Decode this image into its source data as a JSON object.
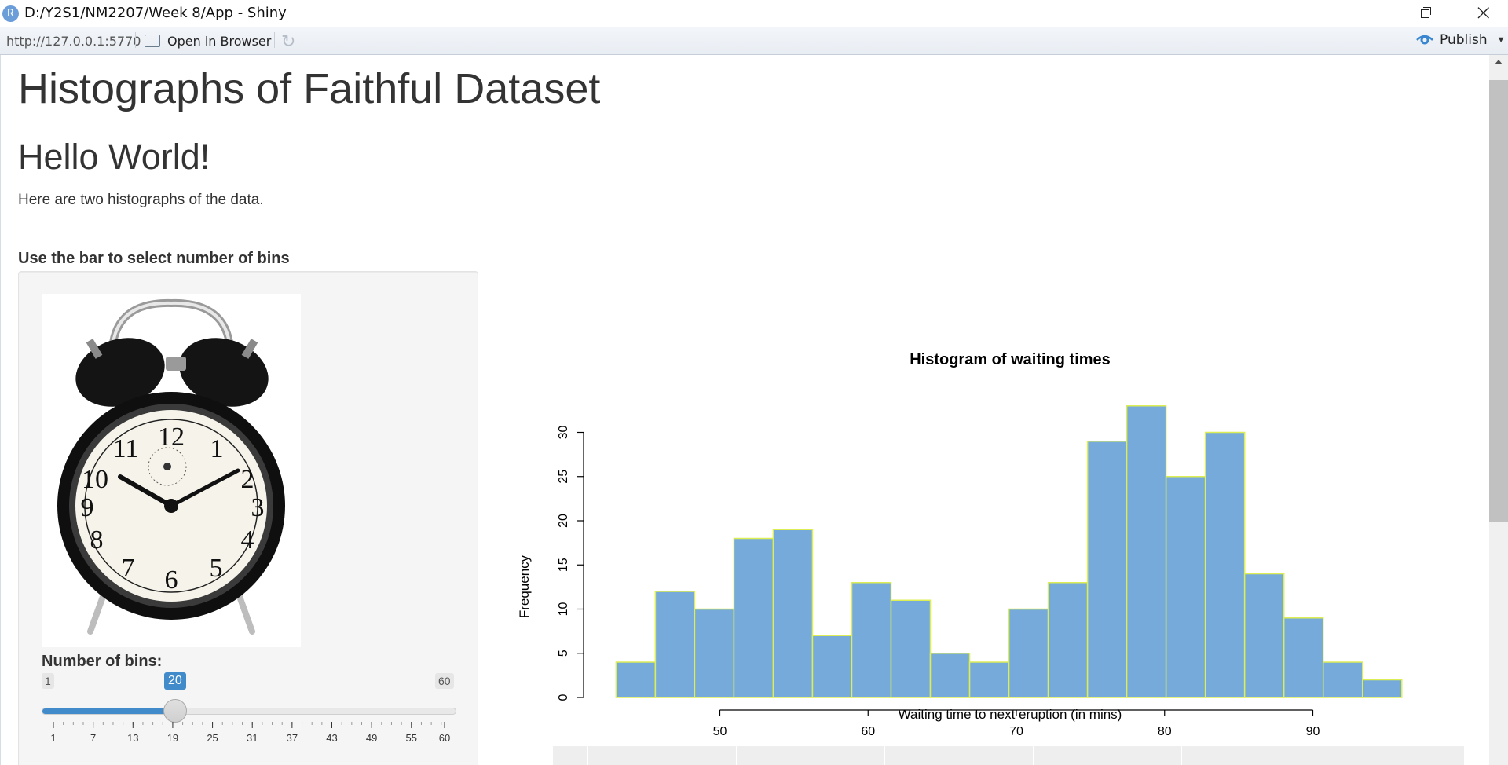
{
  "window": {
    "app_icon_letter": "R",
    "title": "D:/Y2S1/NM2207/Week 8/App - Shiny",
    "minimize_icon": "minimize-icon",
    "restore_icon": "restore-icon",
    "close_icon": "close-icon"
  },
  "toolbar": {
    "url": "http://127.0.0.1:5770",
    "open_in_browser": "Open in Browser",
    "refresh_icon": "refresh-icon",
    "publish": "Publish"
  },
  "page": {
    "title": "Histographs of Faithful Dataset",
    "subtitle": "Hello World!",
    "intro": "Here are two histographs of the data.",
    "sidebar_heading": "Use the bar to select number of bins"
  },
  "sidebar": {
    "image": "alarm-clock-image",
    "slider": {
      "label": "Number of bins:",
      "min": 1,
      "max": 60,
      "value": 20,
      "min_label": "1",
      "max_label": "60",
      "value_label": "20",
      "tick_labels": [
        "1",
        "7",
        "13",
        "19",
        "25",
        "31",
        "37",
        "43",
        "49",
        "55",
        "60"
      ],
      "accent_color": "#428bca"
    }
  },
  "chart_data": {
    "type": "bar",
    "title": "Histogram of waiting times",
    "xlabel": "Waiting time to next eruption (in mins)",
    "ylabel": "Frequency",
    "bin_edges": [
      43.0,
      45.65,
      48.3,
      50.95,
      53.6,
      56.25,
      58.9,
      61.55,
      64.2,
      66.85,
      69.5,
      72.15,
      74.8,
      77.45,
      80.1,
      82.75,
      85.4,
      88.05,
      90.7,
      93.35,
      96.0
    ],
    "values": [
      4,
      12,
      10,
      18,
      19,
      7,
      13,
      11,
      5,
      4,
      10,
      13,
      29,
      33,
      25,
      30,
      14,
      9,
      4,
      2
    ],
    "x_ticks": [
      50,
      60,
      70,
      80,
      90
    ],
    "y_ticks": [
      0,
      5,
      10,
      15,
      20,
      25,
      30
    ],
    "ylim": [
      0,
      33
    ],
    "bar_fill": "#75aadb",
    "bar_border": "#ddee55"
  }
}
